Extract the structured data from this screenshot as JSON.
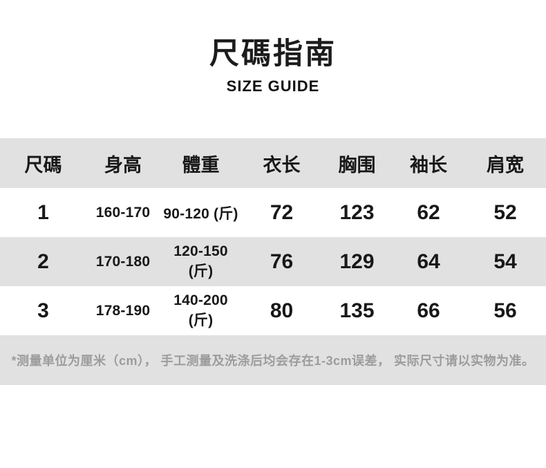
{
  "page": {
    "title_cn": "尺碼指南",
    "title_en": "SIZE GUIDE"
  },
  "table": {
    "columns": [
      "尺碼",
      "身高",
      "體重",
      "衣长",
      "胸围",
      "袖长",
      "肩宽"
    ],
    "rows": [
      [
        "1",
        "160-170",
        "90-120 (斤)",
        "72",
        "123",
        "62",
        "52"
      ],
      [
        "2",
        "170-180",
        "120-150 (斤)",
        "76",
        "129",
        "64",
        "54"
      ],
      [
        "3",
        "178-190",
        "140-200 (斤)",
        "80",
        "135",
        "66",
        "56"
      ]
    ],
    "footnote": "*测量单位为厘米（cm）， 手工测量及洗涤后均会存在1-3cm误差， 实际尺寸请以实物为准。"
  },
  "colors": {
    "band_gray": "#e1e1e1",
    "text_black": "#1c1c1c",
    "footnote_gray": "#9c9c9c",
    "background": "#ffffff"
  }
}
